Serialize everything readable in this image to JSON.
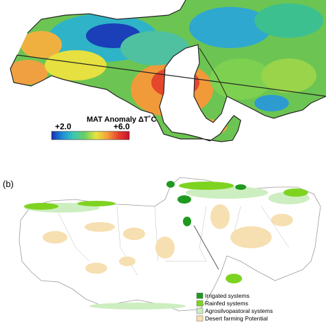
{
  "panel_b": {
    "label": "(b)",
    "legend": [
      {
        "label": "Irrigated systems",
        "color": "#1f9a1f"
      },
      {
        "label": "Rainfed systems",
        "color": "#7ed321"
      },
      {
        "label": "Agrosilvopastoral systems",
        "color": "#cdeec0"
      },
      {
        "label": "Desert farming Potential",
        "color": "#f6dfb0"
      }
    ]
  },
  "panel_a": {
    "colorbar": {
      "title": "MAT Anomaly  ΔT˚C",
      "min_label": "+2.0",
      "max_label": "+6.0",
      "colors": [
        "#1a2fb8",
        "#1e90d8",
        "#3cc8b4",
        "#6bd060",
        "#e6e640",
        "#f6a13a",
        "#e8432d",
        "#c8102e"
      ]
    }
  }
}
